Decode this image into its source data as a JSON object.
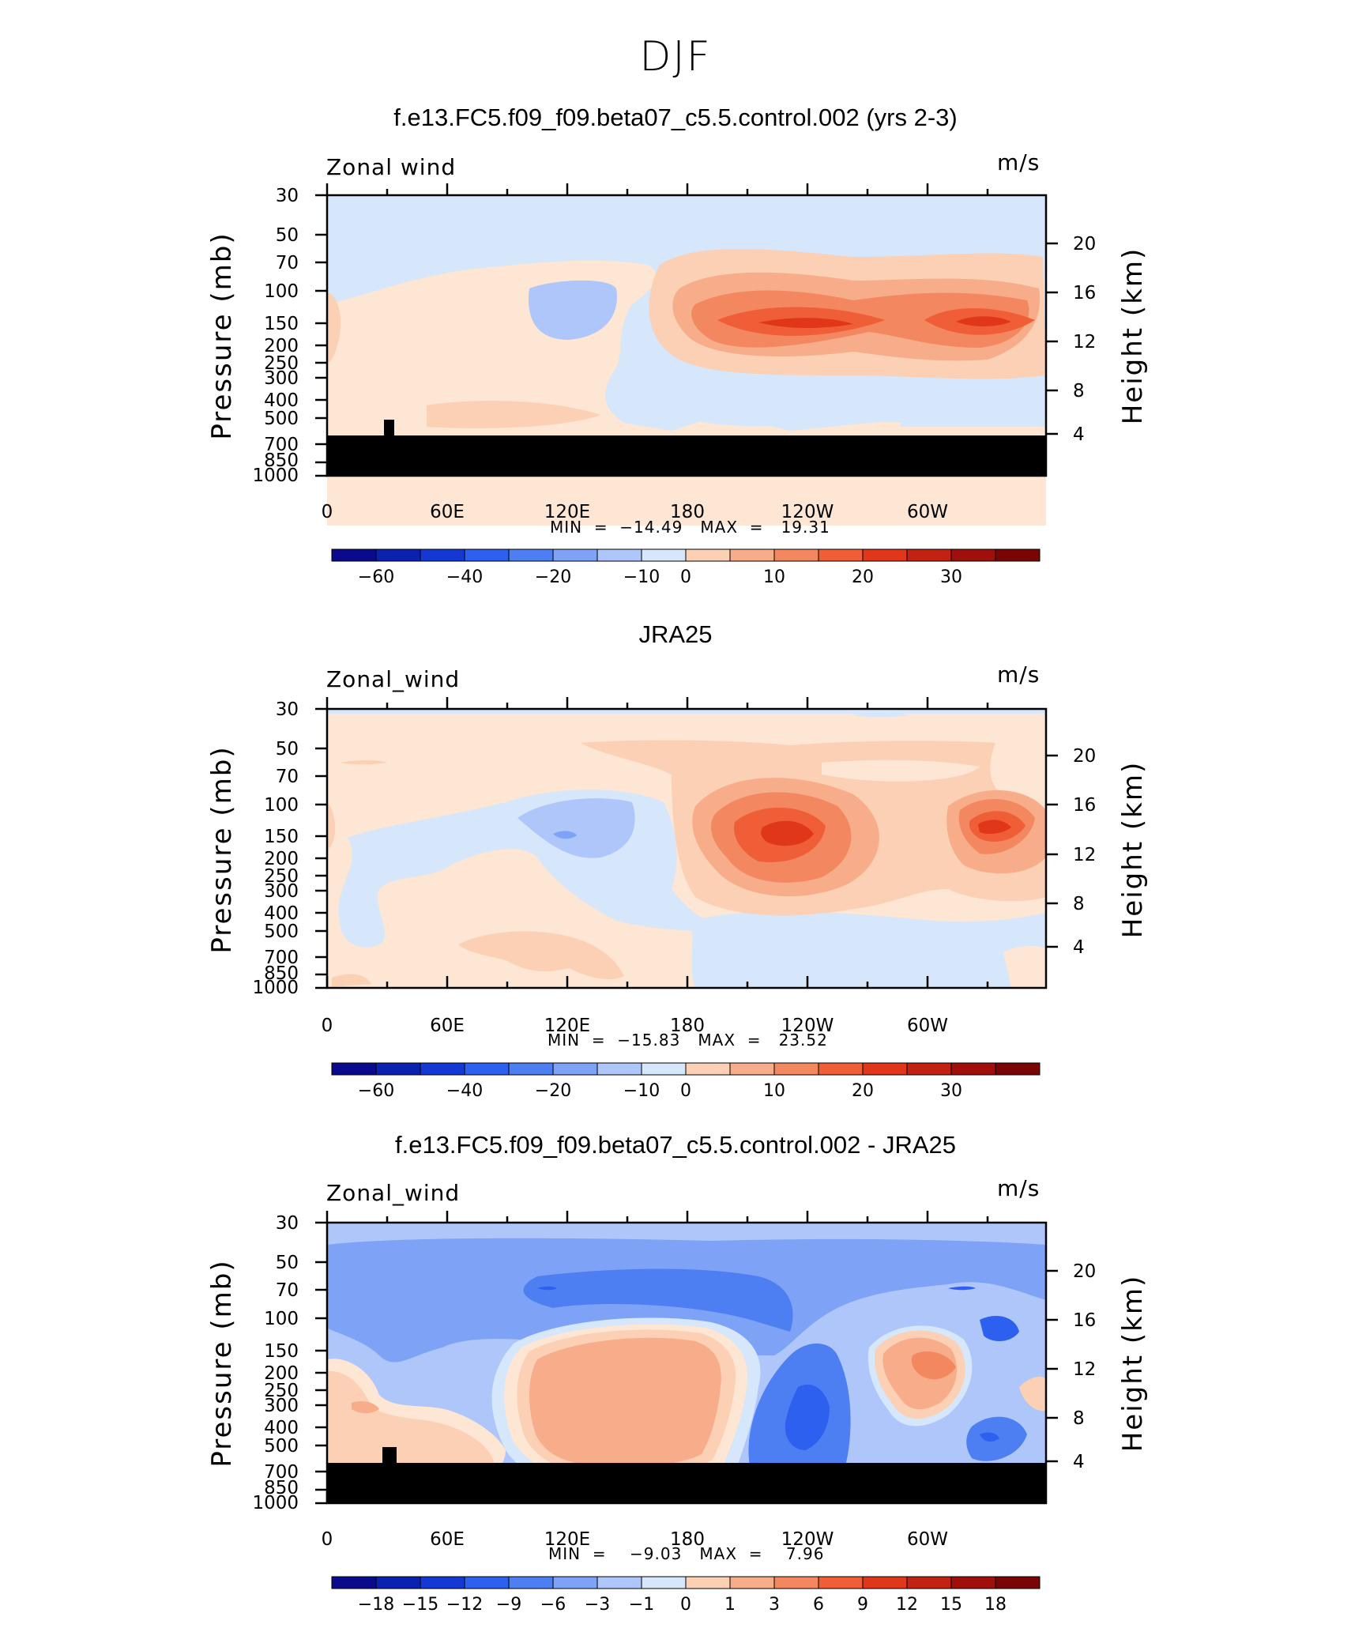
{
  "suptitle": "DJF",
  "colors": {
    "blue_scale": [
      "#0a0a8c",
      "#0b21b0",
      "#1438d4",
      "#2d60ee",
      "#4e7ff2",
      "#7ea2f5",
      "#aec6fa",
      "#d6e6fb"
    ],
    "red_scale": [
      "#fde6d3",
      "#fcd0b5",
      "#f8ad8a",
      "#f38860",
      "#f05e37",
      "#e0361a",
      "#c22212",
      "#a00f0b",
      "#7a0505"
    ],
    "land": "#000000"
  },
  "panels": [
    {
      "title": "f.e13.FC5.f09_f09.beta07_c5.5.control.002 (yrs 2-3)",
      "variable_label": "Zonal wind",
      "units": "m/s",
      "min_max": "MIN  =  −14.49   MAX  =   19.31",
      "colorbar_labels": [
        "−60",
        "−40",
        "−20",
        "−10",
        "0",
        "10",
        "20",
        "30"
      ]
    },
    {
      "title": "JRA25",
      "variable_label": "Zonal_wind",
      "units": "m/s",
      "min_max": "MIN  =  −15.83   MAX  =   23.52",
      "colorbar_labels": [
        "−60",
        "−40",
        "−20",
        "−10",
        "0",
        "10",
        "20",
        "30"
      ]
    },
    {
      "title": "f.e13.FC5.f09_f09.beta07_c5.5.control.002 - JRA25",
      "variable_label": "Zonal_wind",
      "units": "m/s",
      "min_max": "MIN  =    −9.03   MAX  =    7.96",
      "colorbar_labels": [
        "−18",
        "−15",
        "−12",
        "−9",
        "−6",
        "−3",
        "−1",
        "0",
        "1",
        "3",
        "6",
        "9",
        "12",
        "15",
        "18"
      ]
    }
  ],
  "axes": {
    "y_left_label": "Pressure  (mb)",
    "y_right_label": "Height  (km)",
    "pressure_ticks": [
      "30",
      "50",
      "70",
      "100",
      "150",
      "200",
      "250",
      "300",
      "400",
      "500",
      "700",
      "850",
      "1000"
    ],
    "height_ticks": [
      "20",
      "16",
      "12",
      "8",
      "4"
    ],
    "x_ticks": [
      "0",
      "60E",
      "120E",
      "180",
      "120W",
      "60W"
    ]
  },
  "chart_data": [
    {
      "type": "heatmap",
      "title": "f.e13.FC5.f09_f09.beta07_c5.5.control.002 (yrs 2-3)",
      "xlabel": "",
      "ylabel": "Pressure  (mb)",
      "y2label": "Height  (km)",
      "x_ticks": [
        "0",
        "60E",
        "120E",
        "180",
        "120W",
        "60W"
      ],
      "y_ticks": [
        30,
        50,
        70,
        100,
        150,
        200,
        250,
        300,
        400,
        500,
        700,
        850,
        1000
      ],
      "ylim": [
        1000,
        30
      ],
      "contour_levels": [
        -60,
        -50,
        -40,
        -30,
        -20,
        -15,
        -10,
        -5,
        0,
        5,
        10,
        15,
        20,
        25,
        30,
        35
      ],
      "min": -14.49,
      "max": 19.31,
      "units": "m/s"
    },
    {
      "type": "heatmap",
      "title": "JRA25",
      "xlabel": "",
      "ylabel": "Pressure  (mb)",
      "y2label": "Height  (km)",
      "x_ticks": [
        "0",
        "60E",
        "120E",
        "180",
        "120W",
        "60W"
      ],
      "y_ticks": [
        30,
        50,
        70,
        100,
        150,
        200,
        250,
        300,
        400,
        500,
        700,
        850,
        1000
      ],
      "ylim": [
        1000,
        30
      ],
      "contour_levels": [
        -60,
        -50,
        -40,
        -30,
        -20,
        -15,
        -10,
        -5,
        0,
        5,
        10,
        15,
        20,
        25,
        30,
        35
      ],
      "min": -15.83,
      "max": 23.52,
      "units": "m/s"
    },
    {
      "type": "heatmap",
      "title": "f.e13.FC5.f09_f09.beta07_c5.5.control.002 - JRA25",
      "xlabel": "",
      "ylabel": "Pressure  (mb)",
      "y2label": "Height  (km)",
      "x_ticks": [
        "0",
        "60E",
        "120E",
        "180",
        "120W",
        "60W"
      ],
      "y_ticks": [
        30,
        50,
        70,
        100,
        150,
        200,
        250,
        300,
        400,
        500,
        700,
        850,
        1000
      ],
      "ylim": [
        1000,
        30
      ],
      "contour_levels": [
        -18,
        -15,
        -12,
        -9,
        -6,
        -3,
        -1,
        0,
        1,
        3,
        6,
        9,
        12,
        15,
        18
      ],
      "min": -9.03,
      "max": 7.96,
      "units": "m/s"
    }
  ]
}
